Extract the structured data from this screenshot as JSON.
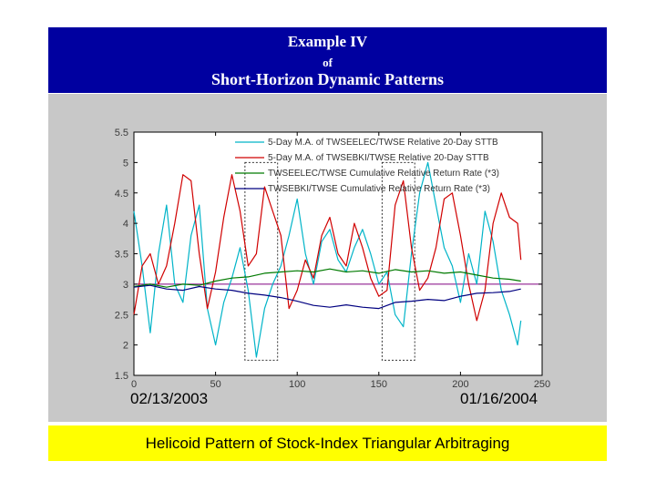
{
  "header": {
    "title": "Example IV",
    "connector": "of",
    "subtitle": "Short-Horizon Dynamic Patterns"
  },
  "dates": {
    "start": "02/13/2003",
    "end": "01/16/2004"
  },
  "footer": {
    "caption": "Helicoid Pattern of Stock-Index Triangular Arbitraging"
  },
  "colors": {
    "header_bg": "#0000a0",
    "footer_bg": "#ffff00",
    "cyan": "#00b4c8",
    "red": "#d00000",
    "green": "#007a00",
    "navy": "#000080",
    "reference_line": "#800080"
  },
  "chart_data": {
    "type": "line",
    "xlim": [
      0,
      250
    ],
    "ylim": [
      1.5,
      5.5
    ],
    "x_ticks": [
      "0",
      "50",
      "100",
      "150",
      "200",
      "250"
    ],
    "y_ticks": [
      "1.5",
      "2",
      "2.5",
      "3",
      "3.5",
      "4",
      "4.5",
      "5",
      "5.5"
    ],
    "grid": false,
    "legend_position": "top",
    "reference_line_y": 3.0,
    "highlight_ranges": [
      [
        68,
        88
      ],
      [
        152,
        172
      ]
    ],
    "series": [
      {
        "name": "5-Day M.A. of TWSEELEC/TWSE Relative 20-Day STTB",
        "color": "#00b4c8",
        "x": [
          0,
          5,
          10,
          15,
          20,
          25,
          30,
          35,
          40,
          45,
          50,
          55,
          60,
          65,
          70,
          75,
          80,
          85,
          90,
          95,
          100,
          105,
          110,
          115,
          120,
          125,
          130,
          135,
          140,
          145,
          150,
          155,
          160,
          165,
          170,
          175,
          180,
          185,
          190,
          195,
          200,
          205,
          210,
          215,
          220,
          225,
          230,
          235,
          237
        ],
        "y": [
          4.2,
          3.3,
          2.2,
          3.5,
          4.3,
          3.0,
          2.7,
          3.8,
          4.3,
          2.6,
          2.0,
          2.7,
          3.1,
          3.6,
          2.9,
          1.8,
          2.6,
          3.0,
          3.3,
          3.8,
          4.4,
          3.5,
          3.0,
          3.7,
          3.9,
          3.4,
          3.2,
          3.6,
          3.9,
          3.5,
          3.0,
          3.2,
          2.5,
          2.3,
          3.5,
          4.5,
          5.0,
          4.3,
          3.6,
          3.3,
          2.7,
          3.5,
          3.0,
          4.2,
          3.7,
          2.9,
          2.5,
          2.0,
          2.4
        ]
      },
      {
        "name": "5-Day M.A. of TWSEBKI/TWSE Relative 20-Day STTB",
        "color": "#d00000",
        "x": [
          0,
          5,
          10,
          15,
          20,
          25,
          30,
          35,
          40,
          45,
          50,
          55,
          60,
          65,
          70,
          75,
          80,
          85,
          90,
          95,
          100,
          105,
          110,
          115,
          120,
          125,
          130,
          135,
          140,
          145,
          150,
          155,
          160,
          165,
          170,
          175,
          180,
          185,
          190,
          195,
          200,
          205,
          210,
          215,
          220,
          225,
          230,
          235,
          237
        ],
        "y": [
          2.5,
          3.3,
          3.5,
          3.0,
          3.3,
          4.0,
          4.8,
          4.7,
          3.5,
          2.6,
          3.2,
          4.1,
          4.8,
          4.2,
          3.3,
          3.5,
          4.6,
          4.2,
          3.8,
          2.6,
          2.9,
          3.4,
          3.1,
          3.8,
          4.1,
          3.5,
          3.3,
          4.0,
          3.6,
          3.1,
          2.8,
          2.9,
          4.3,
          4.7,
          3.6,
          2.9,
          3.1,
          3.6,
          4.4,
          4.5,
          3.8,
          3.0,
          2.4,
          2.9,
          4.0,
          4.5,
          4.1,
          4.0,
          3.4
        ]
      },
      {
        "name": "TWSEELEC/TWSE Cumulative Relative Return Rate (*3)",
        "color": "#007a00",
        "x": [
          0,
          10,
          20,
          30,
          40,
          50,
          60,
          70,
          80,
          90,
          100,
          110,
          120,
          130,
          140,
          150,
          160,
          170,
          180,
          190,
          200,
          210,
          220,
          230,
          237
        ],
        "y": [
          2.96,
          3.0,
          2.95,
          3.0,
          2.98,
          3.05,
          3.1,
          3.12,
          3.18,
          3.2,
          3.22,
          3.2,
          3.25,
          3.2,
          3.22,
          3.18,
          3.24,
          3.2,
          3.22,
          3.18,
          3.2,
          3.15,
          3.1,
          3.08,
          3.05
        ]
      },
      {
        "name": "TWSEBKI/TWSE Cumulative Relative Return Rate (*3)",
        "color": "#000080",
        "x": [
          0,
          10,
          20,
          30,
          40,
          50,
          60,
          70,
          80,
          90,
          100,
          110,
          120,
          130,
          140,
          150,
          160,
          170,
          180,
          190,
          200,
          210,
          220,
          230,
          237
        ],
        "y": [
          2.95,
          2.98,
          2.92,
          2.9,
          2.96,
          2.92,
          2.9,
          2.85,
          2.82,
          2.78,
          2.72,
          2.65,
          2.62,
          2.66,
          2.62,
          2.6,
          2.7,
          2.72,
          2.75,
          2.73,
          2.8,
          2.85,
          2.86,
          2.88,
          2.92
        ]
      }
    ]
  }
}
